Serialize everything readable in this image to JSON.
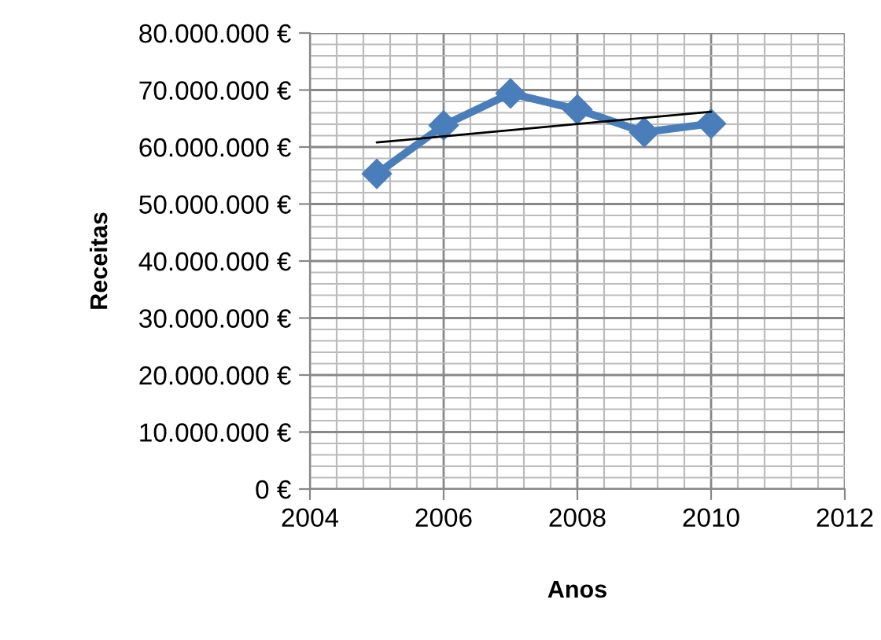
{
  "chart_data": {
    "type": "line",
    "xlabel": "Anos",
    "ylabel": "Receitas",
    "series": [
      {
        "color": "#4a7ebb",
        "marker": "diamond",
        "x": [
          2005,
          2006,
          2007,
          2008,
          2009,
          2010
        ],
        "values": [
          55300000,
          63800000,
          69400000,
          66600000,
          62600000,
          64100000
        ]
      },
      {
        "color": "#000000",
        "marker": "none",
        "x": [
          2005,
          2010
        ],
        "values": [
          60800000,
          66200000
        ]
      }
    ],
    "xlim": [
      2004,
      2012
    ],
    "xticks": [
      2004,
      2006,
      2008,
      2010,
      2012
    ],
    "ylim": [
      0,
      80000000
    ],
    "yticks": [
      {
        "value": 0,
        "label": "0 €"
      },
      {
        "value": 10000000,
        "label": "10.000.000 €"
      },
      {
        "value": 20000000,
        "label": "20.000.000 €"
      },
      {
        "value": 30000000,
        "label": "30.000.000 €"
      },
      {
        "value": 40000000,
        "label": "40.000.000 €"
      },
      {
        "value": 50000000,
        "label": "50.000.000 €"
      },
      {
        "value": 60000000,
        "label": "60.000.000 €"
      },
      {
        "value": 70000000,
        "label": "70.000.000 €"
      },
      {
        "value": 80000000,
        "label": "80.000.000 €"
      }
    ],
    "grid": true,
    "legend": false
  }
}
